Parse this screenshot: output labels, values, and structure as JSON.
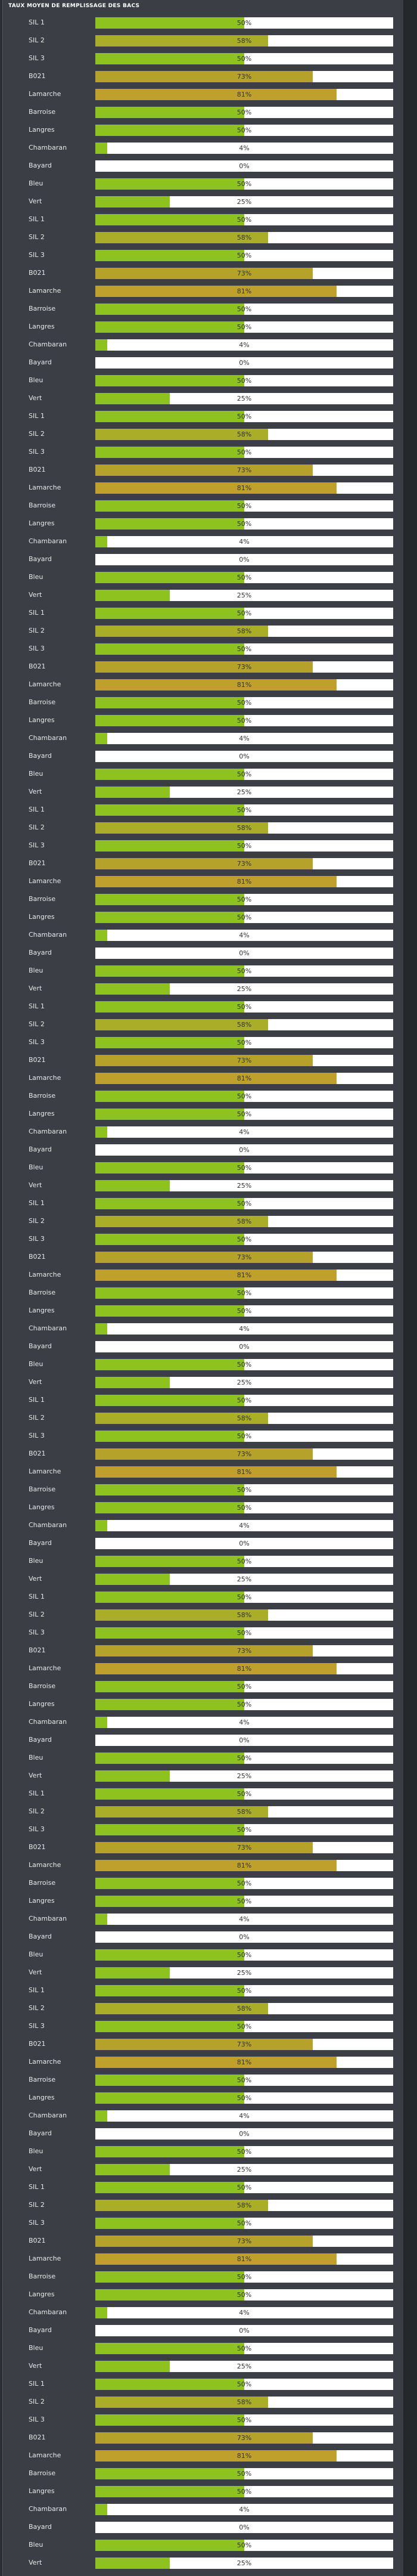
{
  "header": {
    "title": "TAUX MOYEN DE REMPLISSAGE DES BACS"
  },
  "rows": [
    {
      "label": "SIL 1",
      "value": 50,
      "value_label": "50%",
      "color": "#8dc21f"
    },
    {
      "label": "SIL 2",
      "value": 58,
      "value_label": "58%",
      "color": "#a9ad27"
    },
    {
      "label": "SIL 3",
      "value": 50,
      "value_label": "50%",
      "color": "#8dc21f"
    },
    {
      "label": "B021",
      "value": 73,
      "value_label": "73%",
      "color": "#b5a22a"
    },
    {
      "label": "Lamarche",
      "value": 81,
      "value_label": "81%",
      "color": "#bfa02c"
    },
    {
      "label": "Barroise",
      "value": 50,
      "value_label": "50%",
      "color": "#8dc21f"
    },
    {
      "label": "Langres",
      "value": 50,
      "value_label": "50%",
      "color": "#8dc21f"
    },
    {
      "label": "Chambaran",
      "value": 4,
      "value_label": "4%",
      "color": "#8dc21f"
    },
    {
      "label": "Bayard",
      "value": 0,
      "value_label": "0%",
      "color": "#8dc21f"
    },
    {
      "label": "Bleu",
      "value": 50,
      "value_label": "50%",
      "color": "#8dc21f"
    },
    {
      "label": "Vert",
      "value": 25,
      "value_label": "25%",
      "color": "#8dc21f"
    },
    {
      "label": "SIL 1",
      "value": 50,
      "value_label": "50%",
      "color": "#8dc21f"
    },
    {
      "label": "SIL 2",
      "value": 58,
      "value_label": "58%",
      "color": "#a9ad27"
    },
    {
      "label": "SIL 3",
      "value": 50,
      "value_label": "50%",
      "color": "#8dc21f"
    },
    {
      "label": "B021",
      "value": 73,
      "value_label": "73%",
      "color": "#b5a22a"
    },
    {
      "label": "Lamarche",
      "value": 81,
      "value_label": "81%",
      "color": "#bfa02c"
    },
    {
      "label": "Barroise",
      "value": 50,
      "value_label": "50%",
      "color": "#8dc21f"
    },
    {
      "label": "Langres",
      "value": 50,
      "value_label": "50%",
      "color": "#8dc21f"
    },
    {
      "label": "Chambaran",
      "value": 4,
      "value_label": "4%",
      "color": "#8dc21f"
    },
    {
      "label": "Bayard",
      "value": 0,
      "value_label": "0%",
      "color": "#8dc21f"
    },
    {
      "label": "Bleu",
      "value": 50,
      "value_label": "50%",
      "color": "#8dc21f"
    },
    {
      "label": "Vert",
      "value": 25,
      "value_label": "25%",
      "color": "#8dc21f"
    },
    {
      "label": "SIL 1",
      "value": 50,
      "value_label": "50%",
      "color": "#8dc21f"
    },
    {
      "label": "SIL 2",
      "value": 58,
      "value_label": "58%",
      "color": "#a9ad27"
    },
    {
      "label": "SIL 3",
      "value": 50,
      "value_label": "50%",
      "color": "#8dc21f"
    },
    {
      "label": "B021",
      "value": 73,
      "value_label": "73%",
      "color": "#b5a22a"
    },
    {
      "label": "Lamarche",
      "value": 81,
      "value_label": "81%",
      "color": "#bfa02c"
    },
    {
      "label": "Barroise",
      "value": 50,
      "value_label": "50%",
      "color": "#8dc21f"
    },
    {
      "label": "Langres",
      "value": 50,
      "value_label": "50%",
      "color": "#8dc21f"
    },
    {
      "label": "Chambaran",
      "value": 4,
      "value_label": "4%",
      "color": "#8dc21f"
    },
    {
      "label": "Bayard",
      "value": 0,
      "value_label": "0%",
      "color": "#8dc21f"
    },
    {
      "label": "Bleu",
      "value": 50,
      "value_label": "50%",
      "color": "#8dc21f"
    },
    {
      "label": "Vert",
      "value": 25,
      "value_label": "25%",
      "color": "#8dc21f"
    },
    {
      "label": "SIL 1",
      "value": 50,
      "value_label": "50%",
      "color": "#8dc21f"
    },
    {
      "label": "SIL 2",
      "value": 58,
      "value_label": "58%",
      "color": "#a9ad27"
    },
    {
      "label": "SIL 3",
      "value": 50,
      "value_label": "50%",
      "color": "#8dc21f"
    },
    {
      "label": "B021",
      "value": 73,
      "value_label": "73%",
      "color": "#b5a22a"
    },
    {
      "label": "Lamarche",
      "value": 81,
      "value_label": "81%",
      "color": "#bfa02c"
    },
    {
      "label": "Barroise",
      "value": 50,
      "value_label": "50%",
      "color": "#8dc21f"
    },
    {
      "label": "Langres",
      "value": 50,
      "value_label": "50%",
      "color": "#8dc21f"
    },
    {
      "label": "Chambaran",
      "value": 4,
      "value_label": "4%",
      "color": "#8dc21f"
    },
    {
      "label": "Bayard",
      "value": 0,
      "value_label": "0%",
      "color": "#8dc21f"
    },
    {
      "label": "Bleu",
      "value": 50,
      "value_label": "50%",
      "color": "#8dc21f"
    },
    {
      "label": "Vert",
      "value": 25,
      "value_label": "25%",
      "color": "#8dc21f"
    },
    {
      "label": "SIL 1",
      "value": 50,
      "value_label": "50%",
      "color": "#8dc21f"
    },
    {
      "label": "SIL 2",
      "value": 58,
      "value_label": "58%",
      "color": "#a9ad27"
    },
    {
      "label": "SIL 3",
      "value": 50,
      "value_label": "50%",
      "color": "#8dc21f"
    },
    {
      "label": "B021",
      "value": 73,
      "value_label": "73%",
      "color": "#b5a22a"
    },
    {
      "label": "Lamarche",
      "value": 81,
      "value_label": "81%",
      "color": "#bfa02c"
    },
    {
      "label": "Barroise",
      "value": 50,
      "value_label": "50%",
      "color": "#8dc21f"
    },
    {
      "label": "Langres",
      "value": 50,
      "value_label": "50%",
      "color": "#8dc21f"
    },
    {
      "label": "Chambaran",
      "value": 4,
      "value_label": "4%",
      "color": "#8dc21f"
    },
    {
      "label": "Bayard",
      "value": 0,
      "value_label": "0%",
      "color": "#8dc21f"
    },
    {
      "label": "Bleu",
      "value": 50,
      "value_label": "50%",
      "color": "#8dc21f"
    },
    {
      "label": "Vert",
      "value": 25,
      "value_label": "25%",
      "color": "#8dc21f"
    },
    {
      "label": "SIL 1",
      "value": 50,
      "value_label": "50%",
      "color": "#8dc21f"
    },
    {
      "label": "SIL 2",
      "value": 58,
      "value_label": "58%",
      "color": "#a9ad27"
    },
    {
      "label": "SIL 3",
      "value": 50,
      "value_label": "50%",
      "color": "#8dc21f"
    },
    {
      "label": "B021",
      "value": 73,
      "value_label": "73%",
      "color": "#b5a22a"
    },
    {
      "label": "Lamarche",
      "value": 81,
      "value_label": "81%",
      "color": "#bfa02c"
    },
    {
      "label": "Barroise",
      "value": 50,
      "value_label": "50%",
      "color": "#8dc21f"
    },
    {
      "label": "Langres",
      "value": 50,
      "value_label": "50%",
      "color": "#8dc21f"
    },
    {
      "label": "Chambaran",
      "value": 4,
      "value_label": "4%",
      "color": "#8dc21f"
    },
    {
      "label": "Bayard",
      "value": 0,
      "value_label": "0%",
      "color": "#8dc21f"
    },
    {
      "label": "Bleu",
      "value": 50,
      "value_label": "50%",
      "color": "#8dc21f"
    },
    {
      "label": "Vert",
      "value": 25,
      "value_label": "25%",
      "color": "#8dc21f"
    },
    {
      "label": "SIL 1",
      "value": 50,
      "value_label": "50%",
      "color": "#8dc21f"
    },
    {
      "label": "SIL 2",
      "value": 58,
      "value_label": "58%",
      "color": "#a9ad27"
    },
    {
      "label": "SIL 3",
      "value": 50,
      "value_label": "50%",
      "color": "#8dc21f"
    },
    {
      "label": "B021",
      "value": 73,
      "value_label": "73%",
      "color": "#b5a22a"
    },
    {
      "label": "Lamarche",
      "value": 81,
      "value_label": "81%",
      "color": "#bfa02c"
    },
    {
      "label": "Barroise",
      "value": 50,
      "value_label": "50%",
      "color": "#8dc21f"
    },
    {
      "label": "Langres",
      "value": 50,
      "value_label": "50%",
      "color": "#8dc21f"
    },
    {
      "label": "Chambaran",
      "value": 4,
      "value_label": "4%",
      "color": "#8dc21f"
    },
    {
      "label": "Bayard",
      "value": 0,
      "value_label": "0%",
      "color": "#8dc21f"
    },
    {
      "label": "Bleu",
      "value": 50,
      "value_label": "50%",
      "color": "#8dc21f"
    },
    {
      "label": "Vert",
      "value": 25,
      "value_label": "25%",
      "color": "#8dc21f"
    },
    {
      "label": "SIL 1",
      "value": 50,
      "value_label": "50%",
      "color": "#8dc21f"
    },
    {
      "label": "SIL 2",
      "value": 58,
      "value_label": "58%",
      "color": "#a9ad27"
    },
    {
      "label": "SIL 3",
      "value": 50,
      "value_label": "50%",
      "color": "#8dc21f"
    },
    {
      "label": "B021",
      "value": 73,
      "value_label": "73%",
      "color": "#b5a22a"
    },
    {
      "label": "Lamarche",
      "value": 81,
      "value_label": "81%",
      "color": "#bfa02c"
    },
    {
      "label": "Barroise",
      "value": 50,
      "value_label": "50%",
      "color": "#8dc21f"
    },
    {
      "label": "Langres",
      "value": 50,
      "value_label": "50%",
      "color": "#8dc21f"
    },
    {
      "label": "Chambaran",
      "value": 4,
      "value_label": "4%",
      "color": "#8dc21f"
    },
    {
      "label": "Bayard",
      "value": 0,
      "value_label": "0%",
      "color": "#8dc21f"
    },
    {
      "label": "Bleu",
      "value": 50,
      "value_label": "50%",
      "color": "#8dc21f"
    },
    {
      "label": "Vert",
      "value": 25,
      "value_label": "25%",
      "color": "#8dc21f"
    },
    {
      "label": "SIL 1",
      "value": 50,
      "value_label": "50%",
      "color": "#8dc21f"
    },
    {
      "label": "SIL 2",
      "value": 58,
      "value_label": "58%",
      "color": "#a9ad27"
    },
    {
      "label": "SIL 3",
      "value": 50,
      "value_label": "50%",
      "color": "#8dc21f"
    },
    {
      "label": "B021",
      "value": 73,
      "value_label": "73%",
      "color": "#b5a22a"
    },
    {
      "label": "Lamarche",
      "value": 81,
      "value_label": "81%",
      "color": "#bfa02c"
    },
    {
      "label": "Barroise",
      "value": 50,
      "value_label": "50%",
      "color": "#8dc21f"
    },
    {
      "label": "Langres",
      "value": 50,
      "value_label": "50%",
      "color": "#8dc21f"
    },
    {
      "label": "Chambaran",
      "value": 4,
      "value_label": "4%",
      "color": "#8dc21f"
    },
    {
      "label": "Bayard",
      "value": 0,
      "value_label": "0%",
      "color": "#8dc21f"
    },
    {
      "label": "Bleu",
      "value": 50,
      "value_label": "50%",
      "color": "#8dc21f"
    },
    {
      "label": "Vert",
      "value": 25,
      "value_label": "25%",
      "color": "#8dc21f"
    },
    {
      "label": "SIL 1",
      "value": 50,
      "value_label": "50%",
      "color": "#8dc21f"
    },
    {
      "label": "SIL 2",
      "value": 58,
      "value_label": "58%",
      "color": "#a9ad27"
    },
    {
      "label": "SIL 3",
      "value": 50,
      "value_label": "50%",
      "color": "#8dc21f"
    },
    {
      "label": "B021",
      "value": 73,
      "value_label": "73%",
      "color": "#b5a22a"
    },
    {
      "label": "Lamarche",
      "value": 81,
      "value_label": "81%",
      "color": "#bfa02c"
    },
    {
      "label": "Barroise",
      "value": 50,
      "value_label": "50%",
      "color": "#8dc21f"
    },
    {
      "label": "Langres",
      "value": 50,
      "value_label": "50%",
      "color": "#8dc21f"
    },
    {
      "label": "Chambaran",
      "value": 4,
      "value_label": "4%",
      "color": "#8dc21f"
    },
    {
      "label": "Bayard",
      "value": 0,
      "value_label": "0%",
      "color": "#8dc21f"
    },
    {
      "label": "Bleu",
      "value": 50,
      "value_label": "50%",
      "color": "#8dc21f"
    },
    {
      "label": "Vert",
      "value": 25,
      "value_label": "25%",
      "color": "#8dc21f"
    },
    {
      "label": "SIL 1",
      "value": 50,
      "value_label": "50%",
      "color": "#8dc21f"
    },
    {
      "label": "SIL 2",
      "value": 58,
      "value_label": "58%",
      "color": "#a9ad27"
    },
    {
      "label": "SIL 3",
      "value": 50,
      "value_label": "50%",
      "color": "#8dc21f"
    },
    {
      "label": "B021",
      "value": 73,
      "value_label": "73%",
      "color": "#b5a22a"
    },
    {
      "label": "Lamarche",
      "value": 81,
      "value_label": "81%",
      "color": "#bfa02c"
    },
    {
      "label": "Barroise",
      "value": 50,
      "value_label": "50%",
      "color": "#8dc21f"
    },
    {
      "label": "Langres",
      "value": 50,
      "value_label": "50%",
      "color": "#8dc21f"
    },
    {
      "label": "Chambaran",
      "value": 4,
      "value_label": "4%",
      "color": "#8dc21f"
    },
    {
      "label": "Bayard",
      "value": 0,
      "value_label": "0%",
      "color": "#8dc21f"
    },
    {
      "label": "Bleu",
      "value": 50,
      "value_label": "50%",
      "color": "#8dc21f"
    },
    {
      "label": "Vert",
      "value": 25,
      "value_label": "25%",
      "color": "#8dc21f"
    },
    {
      "label": "SIL 1",
      "value": 50,
      "value_label": "50%",
      "color": "#8dc21f"
    },
    {
      "label": "SIL 2",
      "value": 58,
      "value_label": "58%",
      "color": "#a9ad27"
    },
    {
      "label": "SIL 3",
      "value": 50,
      "value_label": "50%",
      "color": "#8dc21f"
    },
    {
      "label": "B021",
      "value": 73,
      "value_label": "73%",
      "color": "#b5a22a"
    },
    {
      "label": "Lamarche",
      "value": 81,
      "value_label": "81%",
      "color": "#bfa02c"
    },
    {
      "label": "Barroise",
      "value": 50,
      "value_label": "50%",
      "color": "#8dc21f"
    },
    {
      "label": "Langres",
      "value": 50,
      "value_label": "50%",
      "color": "#8dc21f"
    },
    {
      "label": "Chambaran",
      "value": 4,
      "value_label": "4%",
      "color": "#8dc21f"
    },
    {
      "label": "Bayard",
      "value": 0,
      "value_label": "0%",
      "color": "#8dc21f"
    },
    {
      "label": "Bleu",
      "value": 50,
      "value_label": "50%",
      "color": "#8dc21f"
    },
    {
      "label": "Vert",
      "value": 25,
      "value_label": "25%",
      "color": "#8dc21f"
    },
    {
      "label": "SIL 1",
      "value": 50,
      "value_label": "50%",
      "color": "#8dc21f"
    },
    {
      "label": "SIL 2",
      "value": 58,
      "value_label": "58%",
      "color": "#a9ad27"
    },
    {
      "label": "SIL 3",
      "value": 50,
      "value_label": "50%",
      "color": "#8dc21f"
    },
    {
      "label": "B021",
      "value": 73,
      "value_label": "73%",
      "color": "#b5a22a"
    },
    {
      "label": "Lamarche",
      "value": 81,
      "value_label": "81%",
      "color": "#bfa02c"
    },
    {
      "label": "Barroise",
      "value": 50,
      "value_label": "50%",
      "color": "#8dc21f"
    },
    {
      "label": "Langres",
      "value": 50,
      "value_label": "50%",
      "color": "#8dc21f"
    },
    {
      "label": "Chambaran",
      "value": 4,
      "value_label": "4%",
      "color": "#8dc21f"
    },
    {
      "label": "Bayard",
      "value": 0,
      "value_label": "0%",
      "color": "#8dc21f"
    },
    {
      "label": "Bleu",
      "value": 50,
      "value_label": "50%",
      "color": "#8dc21f"
    },
    {
      "label": "Vert",
      "value": 25,
      "value_label": "25%",
      "color": "#8dc21f"
    }
  ]
}
